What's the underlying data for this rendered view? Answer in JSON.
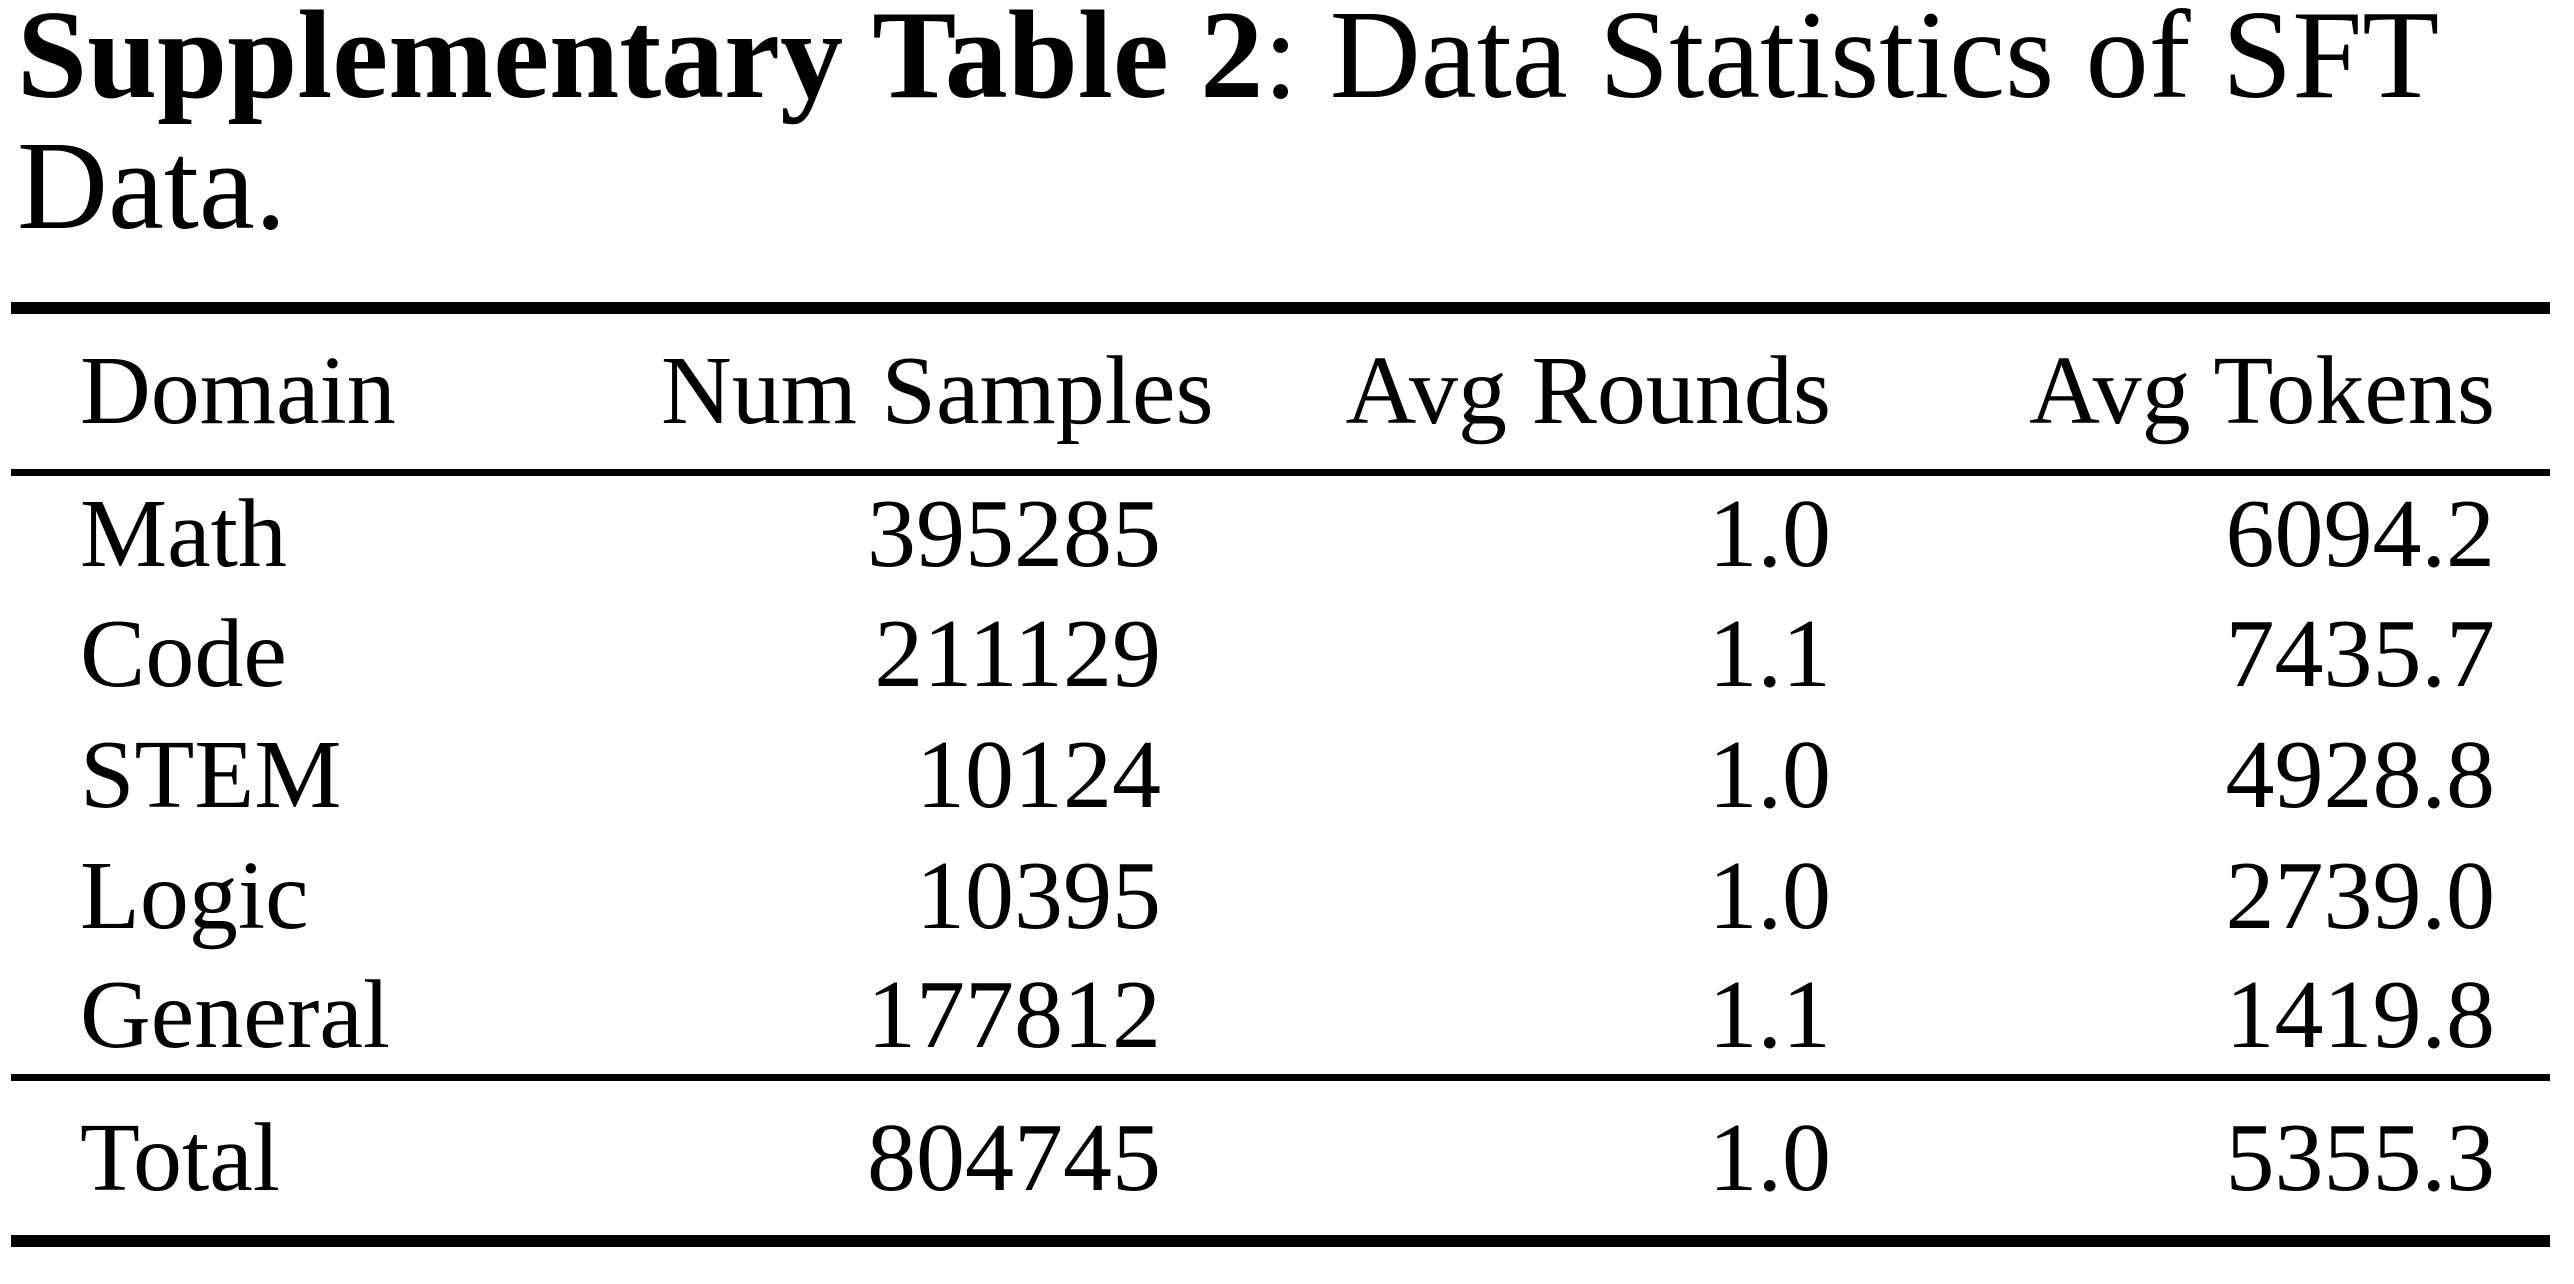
{
  "page": {
    "background_color": "#ffffff",
    "text_color": "#000000",
    "rule_color": "#000000"
  },
  "caption": {
    "bold_label": "Supplementary Table 2",
    "line1_rest": ": Data Statistics of SFT",
    "line2": "Data."
  },
  "table": {
    "headers": {
      "domain": "Domain",
      "num_samples": "Num Samples",
      "avg_rounds": "Avg Rounds",
      "avg_tokens": "Avg Tokens"
    },
    "rows": [
      {
        "domain": "Math",
        "num_samples": "395285",
        "avg_rounds": "1.0",
        "avg_tokens": "6094.2"
      },
      {
        "domain": "Code",
        "num_samples": "211129",
        "avg_rounds": "1.1",
        "avg_tokens": "7435.7"
      },
      {
        "domain": "STEM",
        "num_samples": "10124",
        "avg_rounds": "1.0",
        "avg_tokens": "4928.8"
      },
      {
        "domain": "Logic",
        "num_samples": "10395",
        "avg_rounds": "1.0",
        "avg_tokens": "2739.0"
      },
      {
        "domain": "General",
        "num_samples": "177812",
        "avg_rounds": "1.1",
        "avg_tokens": "1419.8"
      }
    ],
    "total": {
      "domain": "Total",
      "num_samples": "804745",
      "avg_rounds": "1.0",
      "avg_tokens": "5355.3"
    }
  }
}
